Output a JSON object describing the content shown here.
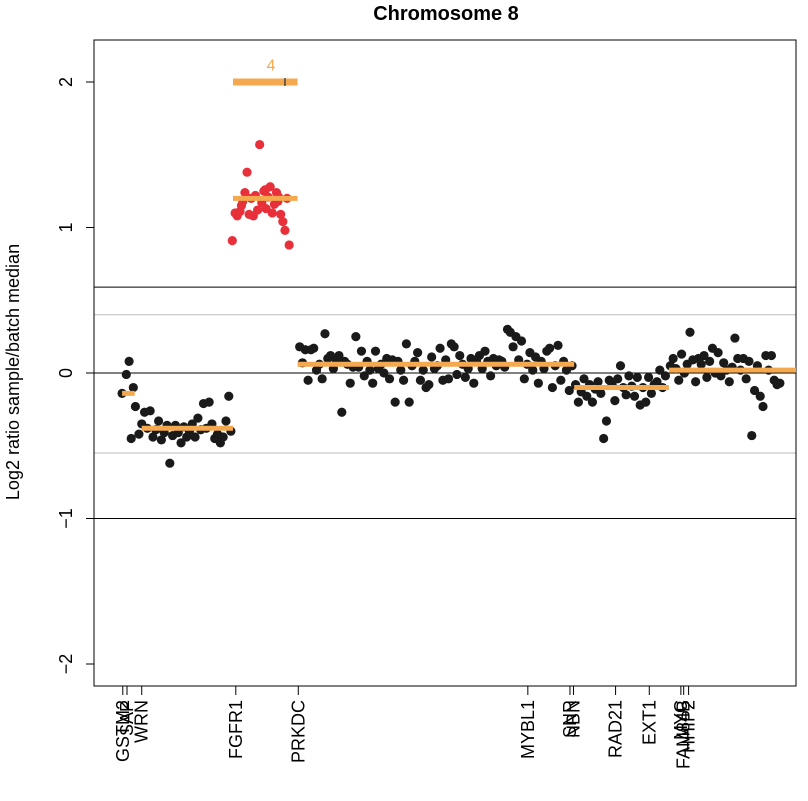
{
  "chart_data": {
    "type": "scatter",
    "title": "Chromosome 8",
    "ylabel": "Log2 ratio sample/batch median",
    "xlabel": "",
    "xlim": [
      0,
      1000
    ],
    "ylim": [
      -2.2,
      2.2
    ],
    "y_ticks": [
      -2,
      -1,
      0,
      1,
      2
    ],
    "y_tick_labels": [
      "−2",
      "−1",
      "0",
      "1",
      "2"
    ],
    "reference_lines": [
      {
        "y": 0,
        "style": "dark"
      },
      {
        "y": 0.59,
        "style": "dark"
      },
      {
        "y": -1,
        "style": "dark"
      },
      {
        "y": 0.4,
        "style": "light"
      },
      {
        "y": -0.55,
        "style": "light"
      }
    ],
    "genes": [
      {
        "name": "GSTM2",
        "x": 41
      },
      {
        "name": "SAP",
        "x": 47
      },
      {
        "name": "WRN",
        "x": 68
      },
      {
        "name": "FGFR1",
        "x": 202
      },
      {
        "name": "PRKDC",
        "x": 291
      },
      {
        "name": "MYBL1",
        "x": 618
      },
      {
        "name": "SNR",
        "x": 678
      },
      {
        "name": "NBN",
        "x": 683
      },
      {
        "name": "RAD21",
        "x": 743
      },
      {
        "name": "EXT1",
        "x": 791
      },
      {
        "name": "MYC",
        "x": 836
      },
      {
        "name": "FAM84B",
        "x": 840
      },
      {
        "name": "HHIP2",
        "x": 847
      }
    ],
    "annotation": {
      "text": "4",
      "x": 252,
      "y": 2.08
    },
    "segments": [
      {
        "x1": 40,
        "x2": 58,
        "y": -0.14,
        "series": "normal"
      },
      {
        "x1": 68,
        "x2": 198,
        "y": -0.38,
        "series": "normal"
      },
      {
        "x1": 198,
        "x2": 290,
        "y": 2.0,
        "series": "amplified"
      },
      {
        "x1": 198,
        "x2": 290,
        "y": 1.2,
        "series": "amplified"
      },
      {
        "x1": 290,
        "x2": 684,
        "y": 0.06,
        "series": "normal"
      },
      {
        "x1": 684,
        "x2": 819,
        "y": -0.1,
        "series": "normal"
      },
      {
        "x1": 819,
        "x2": 1000,
        "y": 0.02,
        "series": "normal"
      }
    ],
    "series": [
      {
        "name": "",
        "color": "#e8303a",
        "points": [
          [
            197,
            0.91
          ],
          [
            204,
            1.08
          ],
          [
            208,
            1.11
          ],
          [
            212,
            1.18
          ],
          [
            215,
            1.24
          ],
          [
            218,
            1.38
          ],
          [
            221,
            1.09
          ],
          [
            224,
            1.2
          ],
          [
            227,
            1.08
          ],
          [
            230,
            1.22
          ],
          [
            233,
            1.12
          ],
          [
            236,
            1.57
          ],
          [
            239,
            1.17
          ],
          [
            242,
            1.25
          ],
          [
            245,
            1.13
          ],
          [
            248,
            1.21
          ],
          [
            251,
            1.28
          ],
          [
            254,
            1.1
          ],
          [
            257,
            1.16
          ],
          [
            260,
            1.24
          ],
          [
            263,
            1.21
          ],
          [
            266,
            1.09
          ],
          [
            269,
            1.04
          ],
          [
            272,
            0.98
          ],
          [
            275,
            1.2
          ],
          [
            278,
            0.88
          ],
          [
            201,
            1.1
          ],
          [
            210,
            1.15
          ],
          [
            244,
            1.26
          ],
          [
            262,
            1.18
          ]
        ]
      },
      {
        "name": "",
        "color": "#1a1a1a",
        "points": [
          [
            40,
            -0.14
          ],
          [
            46,
            -0.01
          ],
          [
            50,
            0.08
          ],
          [
            53,
            -0.45
          ],
          [
            56,
            -0.1
          ],
          [
            59,
            -0.23
          ],
          [
            64,
            -0.42
          ],
          [
            68,
            -0.35
          ],
          [
            72,
            -0.27
          ],
          [
            76,
            -0.38
          ],
          [
            80,
            -0.26
          ],
          [
            84,
            -0.44
          ],
          [
            88,
            -0.39
          ],
          [
            92,
            -0.33
          ],
          [
            96,
            -0.46
          ],
          [
            100,
            -0.41
          ],
          [
            104,
            -0.36
          ],
          [
            108,
            -0.62
          ],
          [
            112,
            -0.43
          ],
          [
            116,
            -0.36
          ],
          [
            120,
            -0.41
          ],
          [
            124,
            -0.48
          ],
          [
            128,
            -0.37
          ],
          [
            132,
            -0.44
          ],
          [
            136,
            -0.4
          ],
          [
            140,
            -0.35
          ],
          [
            144,
            -0.44
          ],
          [
            148,
            -0.31
          ],
          [
            152,
            -0.39
          ],
          [
            156,
            -0.21
          ],
          [
            160,
            -0.38
          ],
          [
            164,
            -0.2
          ],
          [
            168,
            -0.35
          ],
          [
            172,
            -0.45
          ],
          [
            176,
            -0.42
          ],
          [
            180,
            -0.48
          ],
          [
            184,
            -0.44
          ],
          [
            188,
            -0.33
          ],
          [
            192,
            -0.16
          ],
          [
            195,
            -0.4
          ],
          [
            293,
            0.18
          ],
          [
            297,
            0.07
          ],
          [
            301,
            0.16
          ],
          [
            305,
            -0.05
          ],
          [
            309,
            0.16
          ],
          [
            313,
            0.17
          ],
          [
            317,
            0.02
          ],
          [
            321,
            0.06
          ],
          [
            325,
            -0.04
          ],
          [
            329,
            0.27
          ],
          [
            333,
            0.1
          ],
          [
            337,
            0.12
          ],
          [
            341,
            0.03
          ],
          [
            345,
            0.09
          ],
          [
            349,
            0.12
          ],
          [
            353,
            -0.27
          ],
          [
            357,
            0.08
          ],
          [
            361,
            0.06
          ],
          [
            365,
            -0.07
          ],
          [
            369,
            0.04
          ],
          [
            373,
            0.25
          ],
          [
            377,
            0.04
          ],
          [
            381,
            0.15
          ],
          [
            385,
            -0.02
          ],
          [
            389,
            0.08
          ],
          [
            393,
            0.02
          ],
          [
            397,
            -0.07
          ],
          [
            401,
            0.15
          ],
          [
            405,
            0.03
          ],
          [
            409,
            0.06
          ],
          [
            413,
            0.0
          ],
          [
            417,
            0.1
          ],
          [
            421,
            -0.04
          ],
          [
            425,
            0.09
          ],
          [
            429,
            -0.2
          ],
          [
            433,
            0.08
          ],
          [
            437,
            0.02
          ],
          [
            441,
            -0.05
          ],
          [
            445,
            0.2
          ],
          [
            449,
            -0.2
          ],
          [
            453,
            0.05
          ],
          [
            457,
            0.08
          ],
          [
            461,
            0.14
          ],
          [
            465,
            -0.05
          ],
          [
            469,
            0.02
          ],
          [
            473,
            -0.1
          ],
          [
            477,
            -0.08
          ],
          [
            481,
            0.11
          ],
          [
            485,
            0.03
          ],
          [
            489,
            0.05
          ],
          [
            493,
            0.17
          ],
          [
            497,
            -0.05
          ],
          [
            501,
            0.09
          ],
          [
            505,
            -0.04
          ],
          [
            509,
            0.2
          ],
          [
            513,
            0.18
          ],
          [
            517,
            -0.01
          ],
          [
            521,
            0.12
          ],
          [
            525,
            0.06
          ],
          [
            529,
            -0.03
          ],
          [
            533,
            0.03
          ],
          [
            537,
            0.1
          ],
          [
            541,
            -0.07
          ],
          [
            545,
            0.08
          ],
          [
            549,
            0.12
          ],
          [
            553,
            0.03
          ],
          [
            557,
            0.15
          ],
          [
            561,
            0.08
          ],
          [
            565,
            -0.02
          ],
          [
            569,
            0.1
          ],
          [
            573,
            0.05
          ],
          [
            577,
            0.09
          ],
          [
            581,
            0.08
          ],
          [
            585,
            0.04
          ],
          [
            589,
            0.3
          ],
          [
            593,
            0.28
          ],
          [
            597,
            0.18
          ],
          [
            601,
            0.25
          ],
          [
            605,
            0.09
          ],
          [
            609,
            0.22
          ],
          [
            613,
            -0.04
          ],
          [
            617,
            0.06
          ],
          [
            621,
            0.14
          ],
          [
            625,
            0.02
          ],
          [
            629,
            0.11
          ],
          [
            633,
            -0.07
          ],
          [
            637,
            0.08
          ],
          [
            641,
            0.03
          ],
          [
            645,
            0.15
          ],
          [
            649,
            0.17
          ],
          [
            653,
            -0.1
          ],
          [
            657,
            0.05
          ],
          [
            661,
            0.19
          ],
          [
            665,
            -0.05
          ],
          [
            669,
            0.08
          ],
          [
            673,
            0.02
          ],
          [
            677,
            -0.12
          ],
          [
            681,
            0.05
          ],
          [
            686,
            -0.08
          ],
          [
            690,
            -0.2
          ],
          [
            694,
            -0.13
          ],
          [
            698,
            -0.04
          ],
          [
            702,
            -0.16
          ],
          [
            706,
            -0.08
          ],
          [
            710,
            -0.2
          ],
          [
            714,
            -0.11
          ],
          [
            718,
            -0.06
          ],
          [
            722,
            -0.14
          ],
          [
            726,
            -0.45
          ],
          [
            730,
            -0.33
          ],
          [
            734,
            -0.05
          ],
          [
            738,
            -0.08
          ],
          [
            742,
            -0.19
          ],
          [
            746,
            -0.04
          ],
          [
            750,
            0.05
          ],
          [
            754,
            -0.1
          ],
          [
            758,
            -0.15
          ],
          [
            762,
            -0.02
          ],
          [
            766,
            -0.09
          ],
          [
            770,
            -0.16
          ],
          [
            774,
            -0.03
          ],
          [
            778,
            -0.22
          ],
          [
            782,
            -0.1
          ],
          [
            786,
            -0.2
          ],
          [
            790,
            -0.03
          ],
          [
            794,
            -0.14
          ],
          [
            798,
            -0.08
          ],
          [
            802,
            -0.06
          ],
          [
            806,
            0.02
          ],
          [
            810,
            -0.1
          ],
          [
            814,
            -0.02
          ],
          [
            821,
            0.05
          ],
          [
            825,
            0.1
          ],
          [
            829,
            0.03
          ],
          [
            833,
            -0.05
          ],
          [
            837,
            0.13
          ],
          [
            841,
            0.0
          ],
          [
            845,
            0.06
          ],
          [
            849,
            0.28
          ],
          [
            853,
            0.09
          ],
          [
            857,
            -0.06
          ],
          [
            861,
            0.1
          ],
          [
            865,
            0.06
          ],
          [
            869,
            0.12
          ],
          [
            873,
            -0.03
          ],
          [
            877,
            0.08
          ],
          [
            881,
            0.17
          ],
          [
            885,
            0.0
          ],
          [
            889,
            0.14
          ],
          [
            893,
            -0.02
          ],
          [
            897,
            0.07
          ],
          [
            901,
            0.02
          ],
          [
            905,
            -0.06
          ],
          [
            909,
            0.04
          ],
          [
            913,
            0.24
          ],
          [
            917,
            0.1
          ],
          [
            921,
            0.02
          ],
          [
            925,
            0.1
          ],
          [
            929,
            -0.04
          ],
          [
            933,
            0.08
          ],
          [
            937,
            -0.43
          ],
          [
            941,
            -0.12
          ],
          [
            945,
            0.05
          ],
          [
            949,
            -0.16
          ],
          [
            953,
            -0.23
          ],
          [
            957,
            0.12
          ],
          [
            961,
            0.02
          ],
          [
            965,
            0.12
          ],
          [
            969,
            -0.05
          ],
          [
            973,
            -0.08
          ],
          [
            977,
            -0.07
          ]
        ]
      }
    ],
    "colors": {
      "segment": "#f4a94f",
      "amplified_points": "#e8303a",
      "points": "#1a1a1a"
    }
  }
}
